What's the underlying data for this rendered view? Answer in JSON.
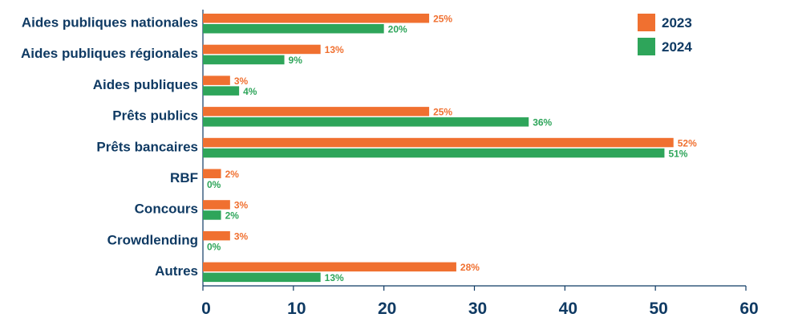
{
  "chart_data": {
    "type": "bar",
    "orientation": "horizontal",
    "categories": [
      "Aides publiques nationales",
      "Aides publiques régionales",
      "Aides publiques",
      "Prêts publics",
      "Prêts bancaires",
      "RBF",
      "Concours",
      "Crowdlending",
      "Autres"
    ],
    "series": [
      {
        "name": "2023",
        "color": "#f07030",
        "values": [
          25,
          13,
          3,
          25,
          52,
          2,
          3,
          3,
          28
        ],
        "labels": [
          "25%",
          "13%",
          "3%",
          "25%",
          "52%",
          "2%",
          "3%",
          "3%",
          "28%"
        ]
      },
      {
        "name": "2024",
        "color": "#2ea55a",
        "values": [
          20,
          9,
          4,
          36,
          51,
          0,
          2,
          0,
          13
        ],
        "labels": [
          "20%",
          "9%",
          "4%",
          "36%",
          "51%",
          "0%",
          "2%",
          "0%",
          "13%"
        ]
      }
    ],
    "xlim": [
      0,
      60
    ],
    "xticks": [
      "0",
      "10",
      "20",
      "30",
      "40",
      "50",
      "60"
    ],
    "grid": false,
    "legend_position": "top-right",
    "axis_color": "#0f3a63"
  }
}
